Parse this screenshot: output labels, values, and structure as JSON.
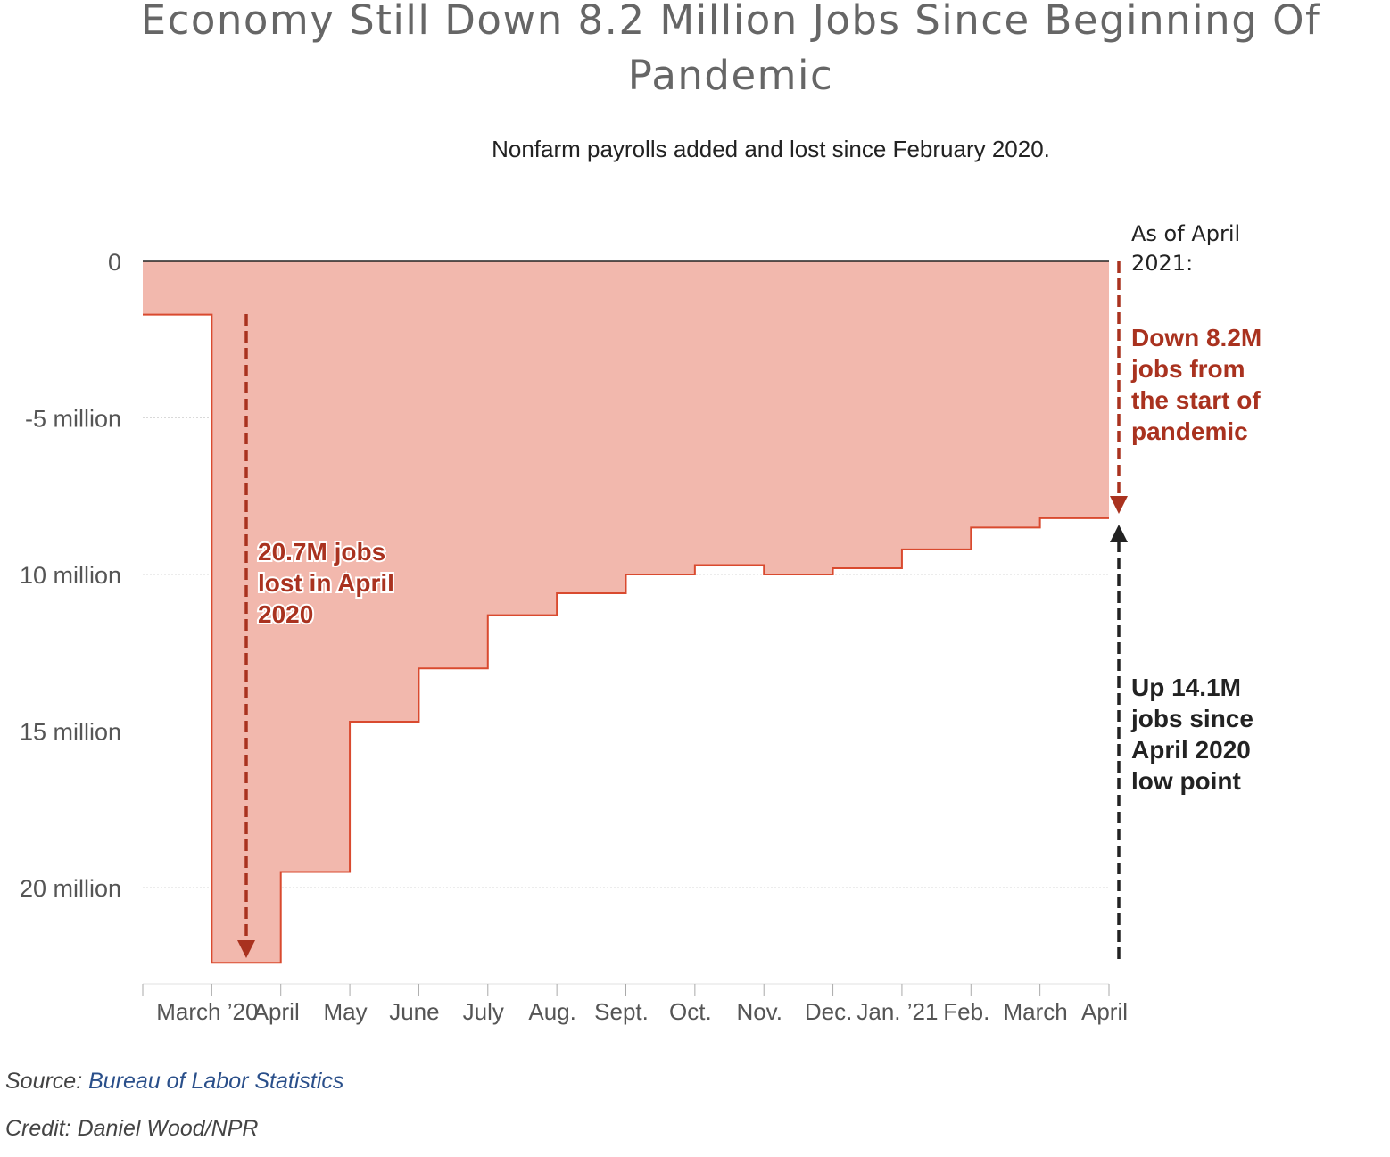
{
  "title": "Economy Still Down 8.2 Million Jobs Since Beginning Of Pandemic",
  "subtitle": "Nonfarm payrolls added and lost since February 2020.",
  "source_label": "Source:",
  "source_name": "Bureau of Labor Statistics",
  "credit": "Credit: Daniel Wood/NPR",
  "colors": {
    "fill": "#f2b8ad",
    "line": "#d94a2f",
    "annotation_red": "#a9321f",
    "annotation_black": "#222222",
    "axis_text": "#555555"
  },
  "chart_data": {
    "type": "area",
    "step": true,
    "title": "Economy Still Down 8.2 Million Jobs Since Beginning Of Pandemic",
    "subtitle": "Nonfarm payrolls added and lost since February 2020.",
    "y_axis_inverted": true,
    "ylim": [
      0,
      22.5
    ],
    "yticks": [
      0,
      5,
      10,
      15,
      20
    ],
    "ytick_labels": [
      "0",
      "-5 million",
      "10 million",
      "15 million",
      "20 million"
    ],
    "xtick_labels": [
      "March ’20",
      "April",
      "May",
      "June",
      "July",
      "Aug.",
      "Sept.",
      "Oct.",
      "Nov.",
      "Dec.",
      "Jan. ’21",
      "Feb.",
      "March",
      "April"
    ],
    "series": [
      {
        "categories": [
          "March ’20",
          "April",
          "May",
          "June",
          "July",
          "Aug.",
          "Sept.",
          "Oct.",
          "Nov.",
          "Dec.",
          "Jan. ’21",
          "Feb.",
          "March",
          "April"
        ],
        "values": [
          1.7,
          22.4,
          19.5,
          14.7,
          13.0,
          11.3,
          10.6,
          10.0,
          9.7,
          10.0,
          9.8,
          9.2,
          8.5,
          8.2
        ]
      }
    ],
    "grid": true,
    "annotations": [
      {
        "lines": [
          "20.7M jobs",
          "lost in April",
          "2020"
        ]
      },
      {
        "lines": [
          "As of April",
          "2021:"
        ]
      },
      {
        "lines": [
          "Down 8.2M",
          "jobs from",
          "the start of",
          "pandemic"
        ]
      },
      {
        "lines": [
          "Up 14.1M",
          "jobs since",
          "April 2020",
          "low point"
        ]
      }
    ]
  }
}
